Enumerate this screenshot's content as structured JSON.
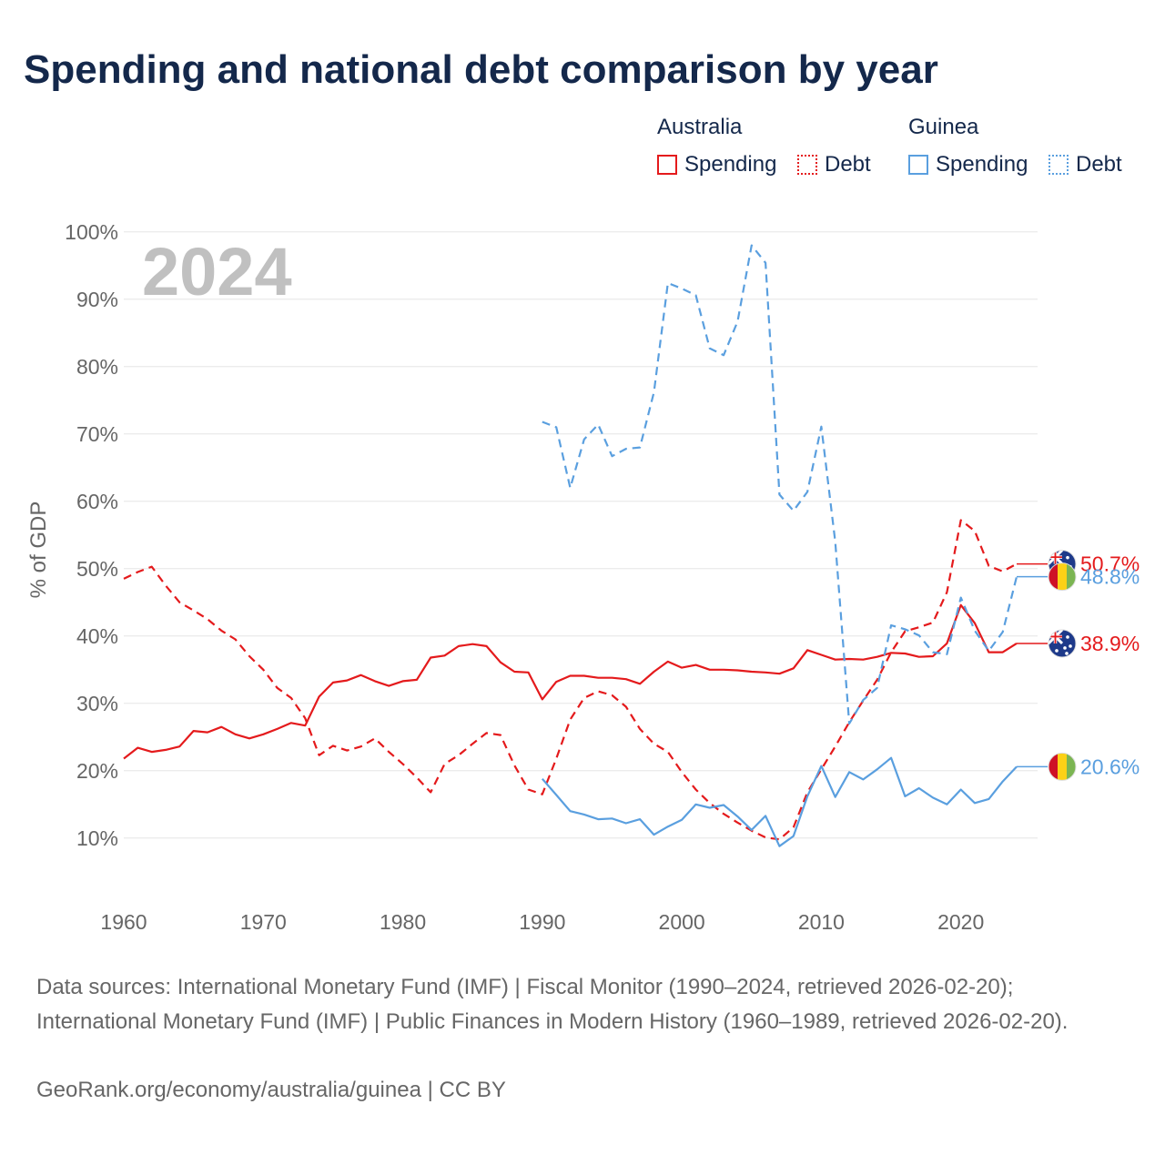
{
  "title": "Spending and national debt comparison by year",
  "legend": {
    "groups": [
      {
        "country": "Australia",
        "color": "#e41a1c",
        "items": [
          {
            "label": "Spending",
            "style": "solid"
          },
          {
            "label": "Debt",
            "style": "dotted"
          }
        ]
      },
      {
        "country": "Guinea",
        "color": "#5a9fdf",
        "items": [
          {
            "label": "Spending",
            "style": "solid"
          },
          {
            "label": "Debt",
            "style": "dotted"
          }
        ]
      }
    ]
  },
  "chart_data": {
    "type": "line",
    "year_label": "2024",
    "ylabel": "% of GDP",
    "xlim": [
      1960,
      2025.5
    ],
    "ylim": [
      2,
      102
    ],
    "x_ticks": [
      1960,
      1970,
      1980,
      1990,
      2000,
      2010,
      2020
    ],
    "y_ticks": [
      10,
      20,
      30,
      40,
      50,
      60,
      70,
      80,
      90,
      100
    ],
    "y_tick_labels": [
      "10%",
      "20%",
      "30%",
      "40%",
      "50%",
      "60%",
      "70%",
      "80%",
      "90%",
      "100%"
    ],
    "series": [
      {
        "name": "Australia Spending",
        "country": "Australia",
        "kind": "spending",
        "color": "#e41a1c",
        "dash": "solid",
        "x": [
          1960,
          1961,
          1962,
          1963,
          1964,
          1965,
          1966,
          1967,
          1968,
          1969,
          1970,
          1971,
          1972,
          1973,
          1974,
          1975,
          1976,
          1977,
          1978,
          1979,
          1980,
          1981,
          1982,
          1983,
          1984,
          1985,
          1986,
          1987,
          1988,
          1989,
          1990,
          1991,
          1992,
          1993,
          1994,
          1995,
          1996,
          1997,
          1998,
          1999,
          2000,
          2001,
          2002,
          2003,
          2004,
          2005,
          2006,
          2007,
          2008,
          2009,
          2010,
          2011,
          2012,
          2013,
          2014,
          2015,
          2016,
          2017,
          2018,
          2019,
          2020,
          2021,
          2022,
          2023,
          2024
        ],
        "values": [
          21.8,
          23.4,
          22.8,
          23.1,
          23.6,
          25.9,
          25.7,
          26.5,
          25.4,
          24.8,
          25.4,
          26.2,
          27.1,
          26.7,
          31.0,
          33.1,
          33.4,
          34.2,
          33.3,
          32.6,
          33.3,
          33.5,
          36.8,
          37.1,
          38.5,
          38.8,
          38.5,
          36.1,
          34.7,
          34.6,
          30.6,
          33.2,
          34.1,
          34.1,
          33.8,
          33.8,
          33.6,
          32.9,
          34.7,
          36.2,
          35.3,
          35.7,
          35.0,
          35.0,
          34.9,
          34.7,
          34.6,
          34.4,
          35.2,
          37.9,
          37.2,
          36.5,
          36.6,
          36.5,
          36.9,
          37.5,
          37.4,
          36.9,
          37.0,
          38.9,
          44.6,
          41.9,
          37.6,
          37.6,
          38.9
        ],
        "end_label": "38.9%",
        "flag": "australia"
      },
      {
        "name": "Australia Debt",
        "country": "Australia",
        "kind": "debt",
        "color": "#e41a1c",
        "dash": "dashed",
        "x": [
          1960,
          1961,
          1962,
          1963,
          1964,
          1965,
          1966,
          1967,
          1968,
          1969,
          1970,
          1971,
          1972,
          1973,
          1974,
          1975,
          1976,
          1977,
          1978,
          1979,
          1980,
          1981,
          1982,
          1983,
          1984,
          1985,
          1986,
          1987,
          1988,
          1989,
          1990,
          1991,
          1992,
          1993,
          1994,
          1995,
          1996,
          1997,
          1998,
          1999,
          2000,
          2001,
          2002,
          2003,
          2004,
          2005,
          2006,
          2007,
          2008,
          2009,
          2010,
          2011,
          2012,
          2013,
          2014,
          2015,
          2016,
          2017,
          2018,
          2019,
          2020,
          2021,
          2022,
          2023,
          2024
        ],
        "values": [
          48.5,
          49.5,
          50.3,
          47.5,
          45.0,
          43.8,
          42.5,
          40.8,
          39.5,
          37.0,
          35.0,
          32.3,
          30.8,
          27.8,
          22.3,
          23.7,
          23.0,
          23.6,
          24.8,
          22.8,
          21.0,
          19.0,
          16.8,
          21.0,
          22.3,
          24.0,
          25.6,
          25.3,
          20.8,
          17.2,
          16.5,
          21.8,
          27.6,
          30.8,
          31.8,
          31.2,
          29.5,
          26.2,
          24.0,
          22.8,
          19.8,
          17.2,
          15.2,
          13.6,
          12.3,
          11.1,
          10.1,
          9.8,
          11.6,
          16.8,
          20.2,
          23.6,
          27.2,
          30.4,
          33.5,
          37.6,
          40.7,
          41.3,
          42.0,
          46.5,
          57.2,
          55.6,
          50.4,
          49.6,
          50.7
        ],
        "end_label": "50.7%",
        "flag": "australia"
      },
      {
        "name": "Guinea Spending",
        "country": "Guinea",
        "kind": "spending",
        "color": "#5a9fdf",
        "dash": "solid",
        "x": [
          1990,
          1991,
          1992,
          1993,
          1994,
          1995,
          1996,
          1997,
          1998,
          1999,
          2000,
          2001,
          2002,
          2003,
          2004,
          2005,
          2006,
          2007,
          2008,
          2009,
          2010,
          2011,
          2012,
          2013,
          2014,
          2015,
          2016,
          2017,
          2018,
          2019,
          2020,
          2021,
          2022,
          2023,
          2024
        ],
        "values": [
          18.8,
          16.4,
          14.0,
          13.5,
          12.8,
          12.9,
          12.2,
          12.8,
          10.5,
          11.7,
          12.7,
          15.0,
          14.5,
          14.9,
          13.2,
          11.2,
          13.3,
          8.8,
          10.3,
          16.2,
          20.7,
          16.1,
          19.8,
          18.7,
          20.2,
          21.9,
          16.2,
          17.4,
          16.0,
          15.0,
          17.2,
          15.2,
          15.8,
          18.4,
          20.6
        ],
        "end_label": "20.6%",
        "flag": "guinea"
      },
      {
        "name": "Guinea Debt",
        "country": "Guinea",
        "kind": "debt",
        "color": "#5a9fdf",
        "dash": "dashed",
        "x": [
          1990,
          1991,
          1992,
          1993,
          1994,
          1995,
          1996,
          1997,
          1998,
          1999,
          2000,
          2001,
          2002,
          2003,
          2004,
          2005,
          2006,
          2007,
          2008,
          2009,
          2010,
          2011,
          2012,
          2013,
          2014,
          2015,
          2016,
          2017,
          2018,
          2019,
          2020,
          2021,
          2022,
          2023,
          2024
        ],
        "values": [
          71.8,
          71.0,
          62.0,
          69.2,
          71.4,
          66.7,
          67.8,
          68.0,
          76.2,
          92.4,
          91.6,
          90.6,
          82.7,
          81.7,
          86.7,
          98.0,
          95.4,
          61.0,
          58.6,
          61.4,
          71.1,
          54.0,
          27.0,
          30.5,
          32.3,
          41.6,
          41.0,
          40.1,
          37.6,
          37.3,
          45.7,
          40.8,
          37.8,
          40.6,
          48.8
        ],
        "end_label": "48.8%",
        "flag": "guinea"
      }
    ]
  },
  "sources": "Data sources: International Monetary Fund (IMF) | Fiscal Monitor (1990–2024, retrieved 2026-02-20); International Monetary Fund (IMF) | Public Finances in Modern History (1960–1989, retrieved 2026-02-20).",
  "footer": "GeoRank.org/economy/australia/guinea | CC BY"
}
